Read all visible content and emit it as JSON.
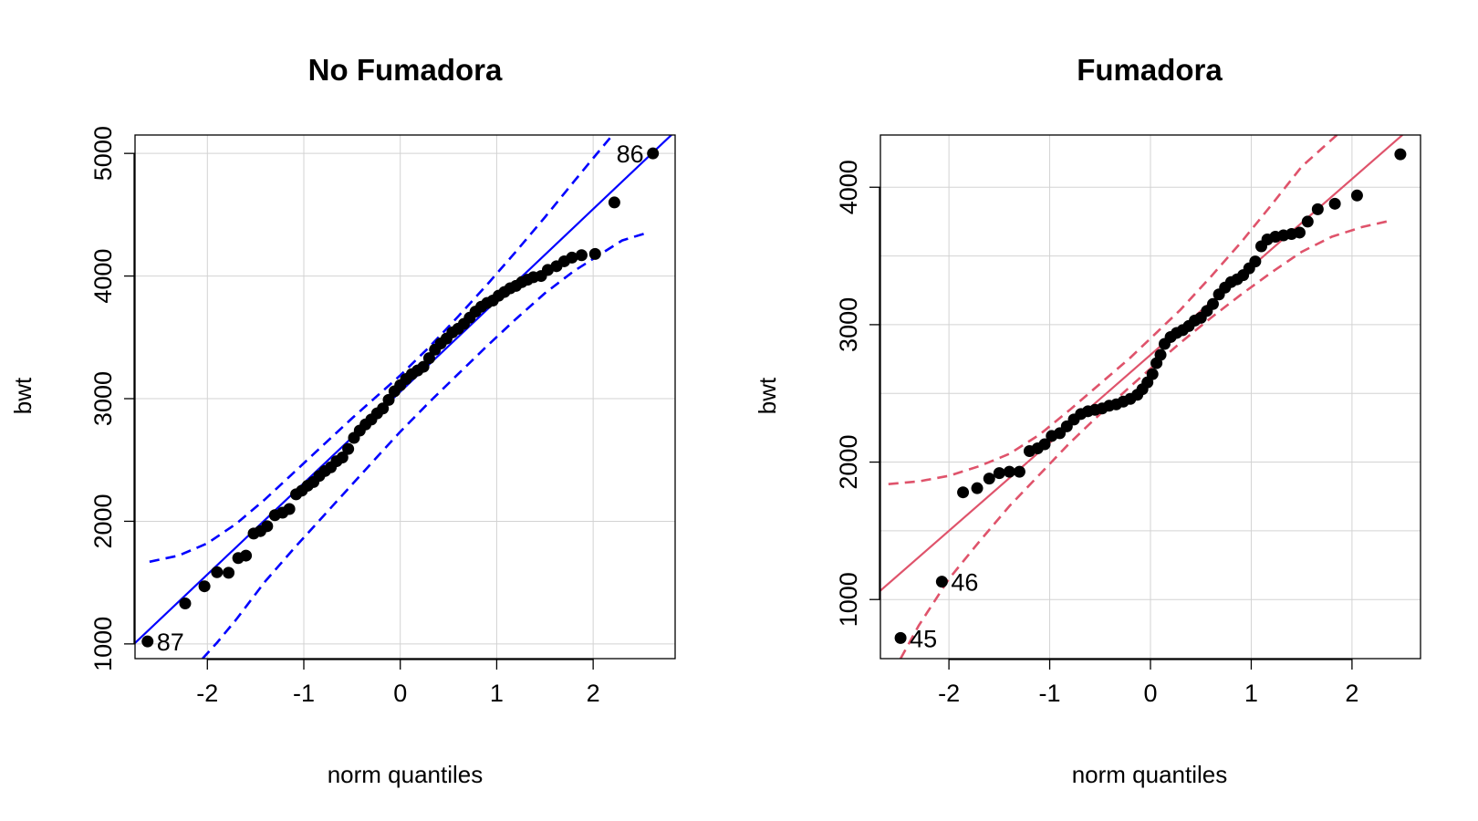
{
  "chart_data": [
    {
      "type": "scatter",
      "title": "No Fumadora",
      "xlabel": "norm quantiles",
      "ylabel": "bwt",
      "xlim": [
        -2.75,
        2.85
      ],
      "ylim": [
        880,
        5150
      ],
      "xticks": [
        -2,
        -1,
        0,
        1,
        2
      ],
      "yticks": [
        1000,
        2000,
        3000,
        4000,
        5000
      ],
      "grid": true,
      "line_color": "#0000FF",
      "point_color": "#000000",
      "reference_line": {
        "slope": 745,
        "intercept": 3056
      },
      "envelope_upper": [
        [
          -2.6,
          1670
        ],
        [
          -2.3,
          1720
        ],
        [
          -2.0,
          1820
        ],
        [
          -1.7,
          1980
        ],
        [
          -1.4,
          2180
        ],
        [
          -1.1,
          2400
        ],
        [
          -0.8,
          2620
        ],
        [
          -0.5,
          2840
        ],
        [
          -0.2,
          3050
        ],
        [
          0.0,
          3190
        ],
        [
          0.3,
          3420
        ],
        [
          0.6,
          3670
        ],
        [
          0.9,
          3930
        ],
        [
          1.2,
          4200
        ],
        [
          1.5,
          4480
        ],
        [
          1.8,
          4770
        ],
        [
          2.0,
          4960
        ],
        [
          2.2,
          5150
        ]
      ],
      "envelope_lower": [
        [
          -2.05,
          880
        ],
        [
          -1.9,
          1010
        ],
        [
          -1.7,
          1200
        ],
        [
          -1.4,
          1510
        ],
        [
          -1.1,
          1780
        ],
        [
          -0.8,
          2040
        ],
        [
          -0.5,
          2300
        ],
        [
          -0.2,
          2560
        ],
        [
          0.0,
          2730
        ],
        [
          0.3,
          2970
        ],
        [
          0.6,
          3200
        ],
        [
          0.9,
          3430
        ],
        [
          1.2,
          3650
        ],
        [
          1.5,
          3860
        ],
        [
          1.8,
          4040
        ],
        [
          2.1,
          4190
        ],
        [
          2.3,
          4290
        ],
        [
          2.55,
          4350
        ]
      ],
      "points": [
        [
          -2.62,
          1020
        ],
        [
          -2.23,
          1330
        ],
        [
          -2.03,
          1470
        ],
        [
          -1.9,
          1585
        ],
        [
          -1.78,
          1580
        ],
        [
          -1.68,
          1700
        ],
        [
          -1.6,
          1720
        ],
        [
          -1.52,
          1900
        ],
        [
          -1.45,
          1920
        ],
        [
          -1.38,
          1960
        ],
        [
          -1.3,
          2050
        ],
        [
          -1.22,
          2070
        ],
        [
          -1.15,
          2100
        ],
        [
          -1.08,
          2220
        ],
        [
          -1.02,
          2250
        ],
        [
          -0.96,
          2290
        ],
        [
          -0.9,
          2320
        ],
        [
          -0.84,
          2370
        ],
        [
          -0.78,
          2410
        ],
        [
          -0.72,
          2440
        ],
        [
          -0.66,
          2490
        ],
        [
          -0.6,
          2520
        ],
        [
          -0.54,
          2590
        ],
        [
          -0.48,
          2680
        ],
        [
          -0.42,
          2740
        ],
        [
          -0.36,
          2790
        ],
        [
          -0.3,
          2830
        ],
        [
          -0.24,
          2880
        ],
        [
          -0.18,
          2920
        ],
        [
          -0.12,
          2990
        ],
        [
          -0.06,
          3060
        ],
        [
          0.0,
          3110
        ],
        [
          0.06,
          3160
        ],
        [
          0.12,
          3200
        ],
        [
          0.18,
          3230
        ],
        [
          0.24,
          3260
        ],
        [
          0.3,
          3330
        ],
        [
          0.36,
          3400
        ],
        [
          0.42,
          3450
        ],
        [
          0.48,
          3490
        ],
        [
          0.54,
          3540
        ],
        [
          0.6,
          3570
        ],
        [
          0.66,
          3610
        ],
        [
          0.72,
          3660
        ],
        [
          0.78,
          3710
        ],
        [
          0.84,
          3750
        ],
        [
          0.9,
          3780
        ],
        [
          0.96,
          3800
        ],
        [
          1.02,
          3840
        ],
        [
          1.08,
          3870
        ],
        [
          1.14,
          3900
        ],
        [
          1.2,
          3920
        ],
        [
          1.26,
          3950
        ],
        [
          1.32,
          3970
        ],
        [
          1.38,
          3990
        ],
        [
          1.46,
          4000
        ],
        [
          1.53,
          4050
        ],
        [
          1.62,
          4080
        ],
        [
          1.7,
          4120
        ],
        [
          1.78,
          4150
        ],
        [
          1.88,
          4170
        ],
        [
          2.02,
          4180
        ],
        [
          2.22,
          4600
        ],
        [
          2.62,
          5000
        ]
      ],
      "labels": [
        {
          "text": "87",
          "x": -2.62,
          "y": 1020,
          "side": "right"
        },
        {
          "text": "86",
          "x": 2.62,
          "y": 5000,
          "side": "left"
        }
      ]
    },
    {
      "type": "scatter",
      "title": "Fumadora",
      "xlabel": "norm quantiles",
      "ylabel": "bwt",
      "xlim": [
        -2.68,
        2.68
      ],
      "ylim": [
        570,
        4380
      ],
      "xticks": [
        -2,
        -1,
        0,
        1,
        2
      ],
      "yticks": [
        1000,
        2000,
        3000,
        4000
      ],
      "minor_grid_y": [
        1500,
        2500,
        3500
      ],
      "grid": true,
      "line_color": "#DF536B",
      "point_color": "#000000",
      "reference_line": {
        "slope": 640,
        "intercept": 2780
      },
      "envelope_upper": [
        [
          -2.6,
          1840
        ],
        [
          -2.3,
          1860
        ],
        [
          -2.0,
          1900
        ],
        [
          -1.7,
          1970
        ],
        [
          -1.4,
          2060
        ],
        [
          -1.1,
          2200
        ],
        [
          -0.8,
          2380
        ],
        [
          -0.5,
          2570
        ],
        [
          -0.2,
          2760
        ],
        [
          0.0,
          2900
        ],
        [
          0.3,
          3110
        ],
        [
          0.6,
          3350
        ],
        [
          0.9,
          3600
        ],
        [
          1.2,
          3870
        ],
        [
          1.5,
          4150
        ],
        [
          1.85,
          4380
        ]
      ],
      "envelope_lower": [
        [
          -2.48,
          570
        ],
        [
          -2.3,
          810
        ],
        [
          -2.0,
          1150
        ],
        [
          -1.7,
          1420
        ],
        [
          -1.4,
          1680
        ],
        [
          -1.1,
          1910
        ],
        [
          -0.8,
          2140
        ],
        [
          -0.5,
          2350
        ],
        [
          -0.2,
          2550
        ],
        [
          0.0,
          2680
        ],
        [
          0.3,
          2870
        ],
        [
          0.6,
          3050
        ],
        [
          0.9,
          3220
        ],
        [
          1.2,
          3380
        ],
        [
          1.5,
          3530
        ],
        [
          1.8,
          3640
        ],
        [
          2.1,
          3710
        ],
        [
          2.4,
          3760
        ]
      ],
      "points": [
        [
          -2.48,
          720
        ],
        [
          -2.07,
          1130
        ],
        [
          -1.86,
          1780
        ],
        [
          -1.72,
          1810
        ],
        [
          -1.6,
          1880
        ],
        [
          -1.5,
          1920
        ],
        [
          -1.4,
          1930
        ],
        [
          -1.3,
          1930
        ],
        [
          -1.2,
          2080
        ],
        [
          -1.12,
          2100
        ],
        [
          -1.05,
          2130
        ],
        [
          -0.98,
          2190
        ],
        [
          -0.9,
          2210
        ],
        [
          -0.83,
          2260
        ],
        [
          -0.76,
          2310
        ],
        [
          -0.69,
          2350
        ],
        [
          -0.62,
          2370
        ],
        [
          -0.55,
          2380
        ],
        [
          -0.48,
          2390
        ],
        [
          -0.41,
          2410
        ],
        [
          -0.34,
          2420
        ],
        [
          -0.27,
          2440
        ],
        [
          -0.2,
          2460
        ],
        [
          -0.13,
          2490
        ],
        [
          -0.08,
          2530
        ],
        [
          -0.03,
          2580
        ],
        [
          0.02,
          2640
        ],
        [
          0.06,
          2720
        ],
        [
          0.1,
          2780
        ],
        [
          0.14,
          2860
        ],
        [
          0.2,
          2910
        ],
        [
          0.26,
          2940
        ],
        [
          0.32,
          2960
        ],
        [
          0.38,
          2990
        ],
        [
          0.44,
          3030
        ],
        [
          0.5,
          3050
        ],
        [
          0.56,
          3100
        ],
        [
          0.62,
          3150
        ],
        [
          0.68,
          3220
        ],
        [
          0.74,
          3270
        ],
        [
          0.8,
          3310
        ],
        [
          0.86,
          3330
        ],
        [
          0.92,
          3360
        ],
        [
          0.98,
          3410
        ],
        [
          1.04,
          3460
        ],
        [
          1.1,
          3570
        ],
        [
          1.16,
          3620
        ],
        [
          1.24,
          3640
        ],
        [
          1.32,
          3650
        ],
        [
          1.4,
          3660
        ],
        [
          1.48,
          3670
        ],
        [
          1.56,
          3750
        ],
        [
          1.66,
          3840
        ],
        [
          1.83,
          3880
        ],
        [
          2.05,
          3940
        ],
        [
          2.48,
          4240
        ]
      ],
      "labels": [
        {
          "text": "45",
          "x": -2.48,
          "y": 720,
          "side": "right"
        },
        {
          "text": "46",
          "x": -2.07,
          "y": 1130,
          "side": "right"
        }
      ]
    }
  ]
}
